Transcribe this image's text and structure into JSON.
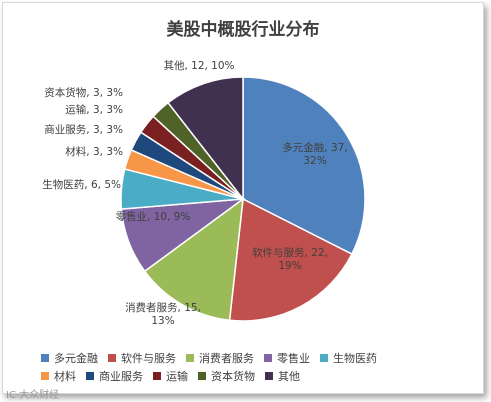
{
  "chart_data": {
    "type": "pie",
    "title": "美股中概股行业分布",
    "slices": [
      {
        "name": "多元金融",
        "value": 37,
        "percent": 32,
        "color": "#4f81bd",
        "label": "多元金融, 37, 32%"
      },
      {
        "name": "软件与服务",
        "value": 22,
        "percent": 19,
        "color": "#c0504d",
        "label": "软件与服务, 22, 19%"
      },
      {
        "name": "消费者服务",
        "value": 15,
        "percent": 13,
        "color": "#9bbb59",
        "label": "消费者服务, 15, 13%"
      },
      {
        "name": "零售业",
        "value": 10,
        "percent": 9,
        "color": "#8064a2",
        "label": "零售业, 10, 9%"
      },
      {
        "name": "生物医药",
        "value": 6,
        "percent": 5,
        "color": "#4bacc6",
        "label": "生物医药, 6, 5%"
      },
      {
        "name": "材料",
        "value": 3,
        "percent": 3,
        "color": "#f79646",
        "label": "材料, 3, 3%"
      },
      {
        "name": "商业服务",
        "value": 3,
        "percent": 3,
        "color": "#1f497d",
        "label": "商业服务, 3, 3%"
      },
      {
        "name": "运输",
        "value": 3,
        "percent": 3,
        "color": "#7b2020",
        "label": "运输, 3, 3%"
      },
      {
        "name": "资本货物",
        "value": 3,
        "percent": 3,
        "color": "#4f6228",
        "label": "资本货物, 3, 3%"
      },
      {
        "name": "其他",
        "value": 12,
        "percent": 10,
        "color": "#403151",
        "label": "其他, 12, 10%"
      }
    ],
    "legend_position": "bottom"
  },
  "watermark": "IC 大众财经"
}
